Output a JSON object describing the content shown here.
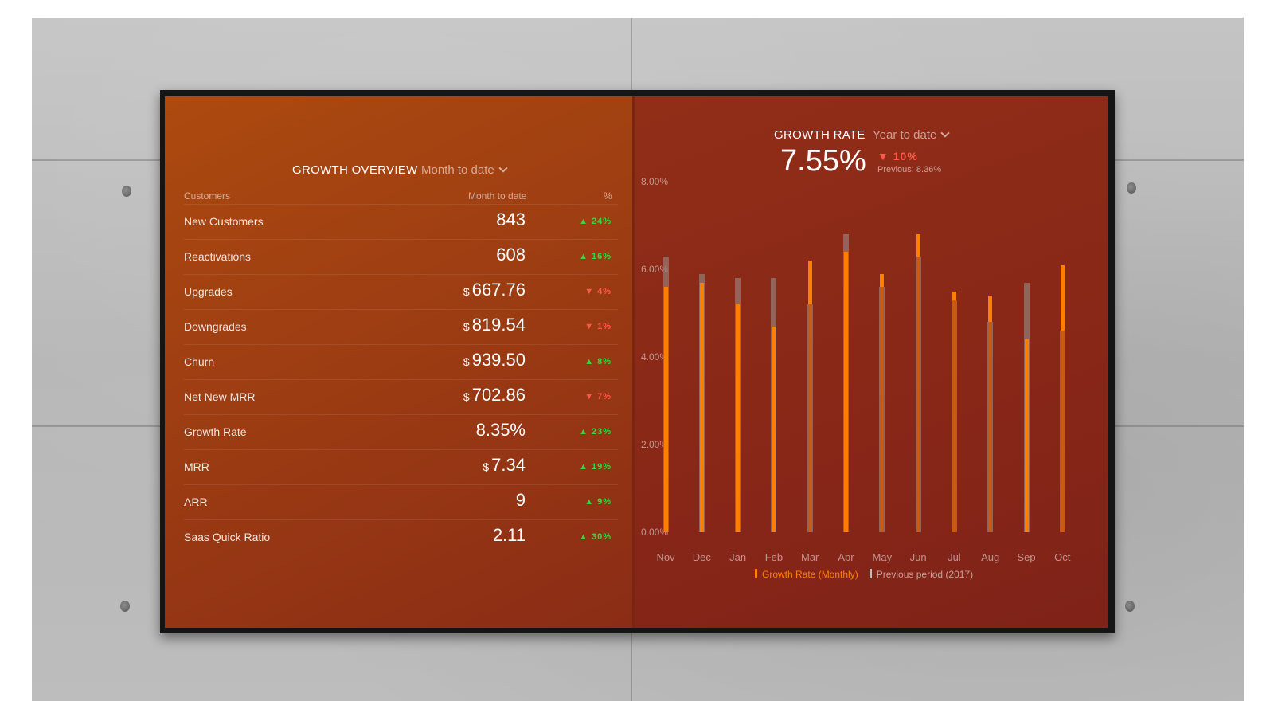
{
  "overview": {
    "title": "GROWTH OVERVIEW",
    "period": "Month to date",
    "columns": {
      "name": "Customers",
      "value": "Month to date",
      "change": "%"
    },
    "rows": [
      {
        "label": "New Customers",
        "currency": "",
        "value": "843",
        "direction": "up",
        "arrow": "▲",
        "change": "24%"
      },
      {
        "label": "Reactivations",
        "currency": "",
        "value": "608",
        "direction": "up",
        "arrow": "▲",
        "change": "16%"
      },
      {
        "label": "Upgrades",
        "currency": "$",
        "value": "667.76",
        "direction": "down",
        "arrow": "▼",
        "change": "4%"
      },
      {
        "label": "Downgrades",
        "currency": "$",
        "value": "819.54",
        "direction": "down",
        "arrow": "▼",
        "change": "1%"
      },
      {
        "label": "Churn",
        "currency": "$",
        "value": "939.50",
        "direction": "up",
        "arrow": "▲",
        "change": "8%"
      },
      {
        "label": "Net New MRR",
        "currency": "$",
        "value": "702.86",
        "direction": "down",
        "arrow": "▼",
        "change": "7%"
      },
      {
        "label": "Growth Rate",
        "currency": "",
        "value": "8.35%",
        "direction": "up",
        "arrow": "▲",
        "change": "23%"
      },
      {
        "label": "MRR",
        "currency": "$",
        "value": "7.34",
        "direction": "up",
        "arrow": "▲",
        "change": "19%"
      },
      {
        "label": "ARR",
        "currency": "",
        "value": "9",
        "direction": "up",
        "arrow": "▲",
        "change": "9%"
      },
      {
        "label": "Saas Quick Ratio",
        "currency": "",
        "value": "2.11",
        "direction": "up",
        "arrow": "▲",
        "change": "30%"
      }
    ]
  },
  "growth": {
    "title": "GROWTH RATE",
    "period": "Year to date",
    "value": "7.55%",
    "change_arrow": "▼",
    "change": "10%",
    "previous": "Previous: 8.36%"
  },
  "chart_data": {
    "type": "bar",
    "categories": [
      "Nov",
      "Dec",
      "Jan",
      "Feb",
      "Mar",
      "Apr",
      "May",
      "Jun",
      "Jul",
      "Aug",
      "Sep",
      "Oct"
    ],
    "y_ticks": [
      "8.00%",
      "6.00%",
      "4.00%",
      "2.00%",
      "0.00%"
    ],
    "ylim": [
      0,
      8
    ],
    "series": [
      {
        "name": "Growth Rate (Monthly)",
        "color": "#ff7f00",
        "values": [
          5.6,
          5.7,
          5.2,
          4.7,
          6.2,
          6.4,
          5.9,
          6.8,
          5.5,
          5.4,
          4.4,
          6.1
        ]
      },
      {
        "name": "Previous period (2017)",
        "color": "#9a7a74",
        "values": [
          6.3,
          5.9,
          5.8,
          5.8,
          5.2,
          6.8,
          5.6,
          6.3,
          5.3,
          4.8,
          5.7,
          4.6
        ]
      }
    ],
    "legend": "bottom"
  },
  "colors": {
    "up": "#3fd23f",
    "down": "#ff5a4a",
    "accent": "#ff7f00"
  }
}
